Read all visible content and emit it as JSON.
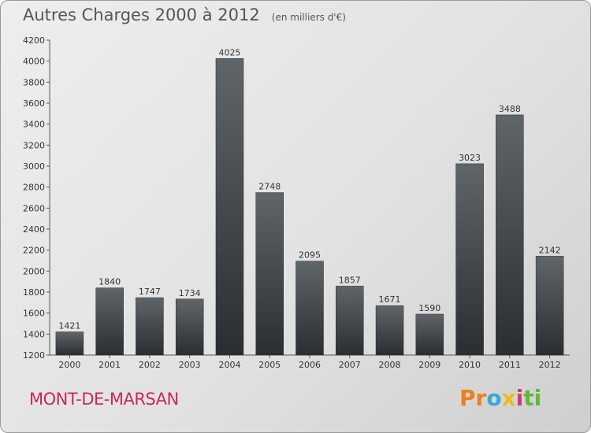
{
  "title": "Autres Charges 2000 à 2012",
  "subtitle": "(en milliers d'€)",
  "location": "MONT-DE-MARSAN",
  "logo_text": "Proxiti",
  "colors": {
    "bar_top": "#5f6469",
    "bar_bottom": "#2a2e33",
    "location": "#c7285f"
  },
  "chart_data": {
    "type": "bar",
    "categories": [
      "2000",
      "2001",
      "2002",
      "2003",
      "2004",
      "2005",
      "2006",
      "2007",
      "2008",
      "2009",
      "2010",
      "2011",
      "2012"
    ],
    "values": [
      1421,
      1840,
      1747,
      1734,
      4025,
      2748,
      2095,
      1857,
      1671,
      1590,
      3023,
      3488,
      2142
    ],
    "ylim": [
      1200,
      4200
    ],
    "yticks": [
      1200,
      1400,
      1600,
      1800,
      2000,
      2200,
      2400,
      2600,
      2800,
      3000,
      3200,
      3400,
      3600,
      3800,
      4000,
      4200
    ],
    "grid": false,
    "data_labels": true
  }
}
